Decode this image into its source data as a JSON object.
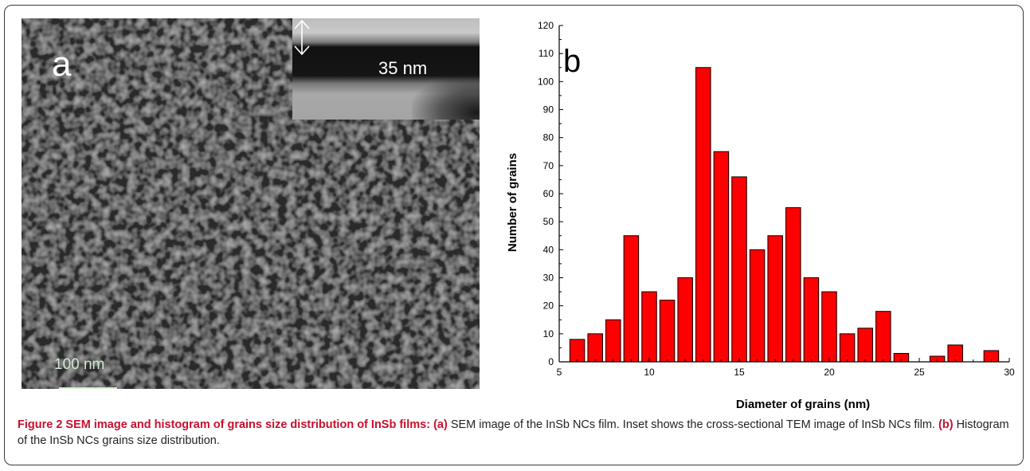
{
  "panel_a": {
    "label": "a",
    "inset_label": "35 nm",
    "scale_label": "100 nm"
  },
  "panel_b": {
    "label": "b"
  },
  "chart_data": {
    "type": "bar",
    "xlabel": "Diameter of grains (nm)",
    "ylabel": "Number of grains",
    "xlim": [
      5,
      30
    ],
    "ylim": [
      0,
      120
    ],
    "xticks": [
      5,
      10,
      15,
      20,
      25,
      30
    ],
    "yticks": [
      0,
      10,
      20,
      30,
      40,
      50,
      60,
      70,
      80,
      90,
      100,
      110,
      120
    ],
    "x": [
      6,
      7,
      8,
      9,
      10,
      11,
      12,
      13,
      14,
      15,
      16,
      17,
      18,
      19,
      20,
      21,
      22,
      23,
      24,
      26,
      27,
      29
    ],
    "values": [
      8,
      10,
      15,
      45,
      25,
      22,
      30,
      105,
      75,
      66,
      40,
      45,
      55,
      30,
      25,
      10,
      12,
      18,
      3,
      2,
      6,
      4
    ],
    "bar_color": "#ff0000",
    "grid": false
  },
  "caption": {
    "title": "Figure 2 SEM image and histogram of grains size distribution of InSb films:",
    "a_tag": "(a)",
    "a_text": "SEM image of the InSb NCs film. Inset shows the cross-sectional TEM image of InSb NCs film.",
    "b_tag": "(b)",
    "b_text": "Histogram of the InSb NCs grains size distribution."
  }
}
